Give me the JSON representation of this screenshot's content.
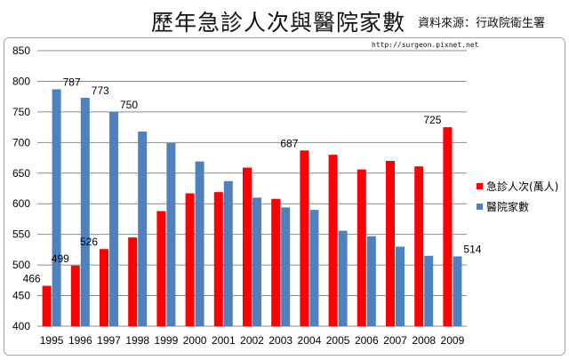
{
  "header": {
    "title": "歷年急診人次與醫院家數",
    "source": "資料來源：行政院衛生署"
  },
  "watermark_url": "http://surgeon.pixnet.net",
  "colors": {
    "emergency": "#ff0000",
    "hospitals": "#4f81bd",
    "grid": "#8c8c8c",
    "axis_text": "#000000"
  },
  "chart_data": {
    "type": "bar",
    "categories": [
      "1995",
      "1996",
      "1997",
      "1998",
      "1999",
      "2000",
      "2001",
      "2002",
      "2003",
      "2004",
      "2005",
      "2006",
      "2007",
      "2008",
      "2009"
    ],
    "series": [
      {
        "name": "急診人次(萬人)",
        "values": [
          466,
          499,
          526,
          545,
          588,
          617,
          619,
          659,
          608,
          687,
          680,
          656,
          670,
          661,
          725
        ]
      },
      {
        "name": "醫院家數",
        "values": [
          787,
          773,
          750,
          718,
          699,
          669,
          637,
          610,
          594,
          590,
          556,
          547,
          530,
          515,
          514
        ]
      }
    ],
    "data_labels": {
      "急診人次(萬人)": {
        "0": "466",
        "1": "499",
        "2": "526",
        "9": "687",
        "14": "725"
      },
      "醫院家數": {
        "0": "787",
        "1": "773",
        "2": "750",
        "14": "514"
      }
    },
    "yticks": [
      "400",
      "450",
      "500",
      "550",
      "600",
      "650",
      "700",
      "750",
      "800",
      "850"
    ],
    "ylim": [
      400,
      850
    ],
    "grid": true,
    "legend_position": "right"
  }
}
